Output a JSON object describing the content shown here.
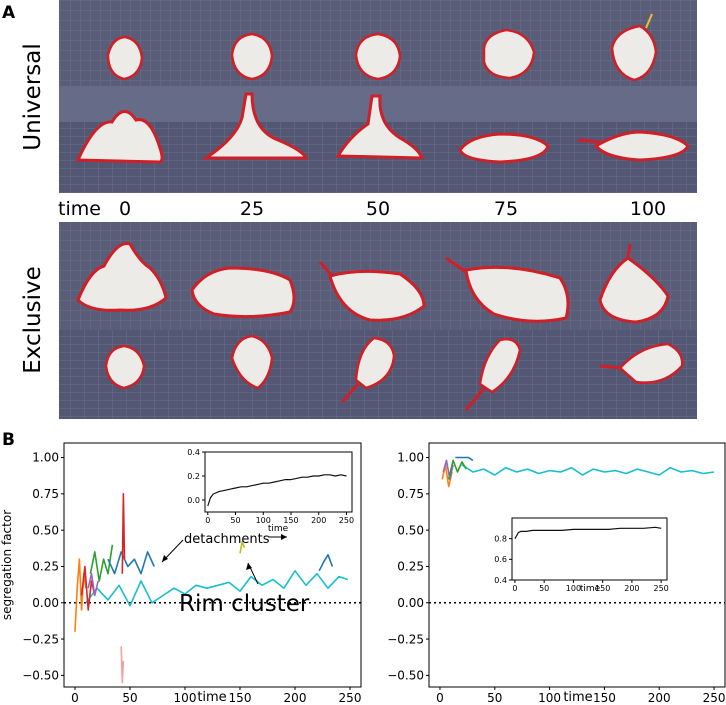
{
  "panel_a": {
    "label": "A",
    "universal_label": "Universal",
    "exclusive_label": "Exclusive",
    "time_label": "time",
    "times": [
      "0",
      "25",
      "50",
      "75",
      "100"
    ],
    "colors": {
      "floor": "#595d78",
      "grid": "#6c708d",
      "cell": "#ecebe8",
      "rim_red": "#d01f26",
      "rim_yellow": "#e8c12b"
    }
  },
  "panel_b": {
    "label": "B"
  },
  "chart_data": [
    {
      "type": "line",
      "title": "",
      "xlabel": "time",
      "ylabel": "segregation factor",
      "xlim": [
        -10,
        260
      ],
      "ylim": [
        -0.58,
        1.1
      ],
      "xticks": [
        0,
        50,
        100,
        150,
        200,
        250
      ],
      "yticks": [
        1.0,
        0.75,
        0.5,
        0.25,
        0.0,
        -0.25,
        -0.5
      ],
      "ytick_labels": [
        "1.00",
        "0.75",
        "0.50",
        "0.25",
        "0.00",
        "−0.25",
        "−0.50"
      ],
      "reference_line": {
        "y": 0.0,
        "style": "dotted"
      },
      "series": [
        {
          "name": "rim cluster",
          "color": "#17becf",
          "x": [
            10,
            20,
            30,
            40,
            50,
            60,
            70,
            80,
            90,
            100,
            110,
            120,
            130,
            140,
            150,
            160,
            170,
            180,
            190,
            200,
            210,
            220,
            230,
            240,
            248
          ],
          "y": [
            0.0,
            0.1,
            0.02,
            0.12,
            -0.02,
            0.15,
            0.0,
            0.05,
            0.1,
            0.06,
            0.12,
            0.1,
            0.12,
            0.14,
            0.08,
            0.18,
            0.12,
            0.16,
            0.1,
            0.22,
            0.12,
            0.2,
            0.1,
            0.18,
            0.16
          ]
        },
        {
          "name": "detachment-orange",
          "color": "#ff7f0e",
          "x": [
            0,
            2,
            4,
            6,
            8,
            10
          ],
          "y": [
            -0.2,
            0.1,
            0.3,
            -0.05,
            0.2,
            0.1
          ]
        },
        {
          "name": "detachment-red",
          "color": "#d62728",
          "x": [
            6,
            9,
            12,
            15,
            18
          ],
          "y": [
            0.05,
            0.25,
            -0.05,
            0.15,
            0.05
          ]
        },
        {
          "name": "detachment-purple",
          "color": "#9467bd",
          "x": [
            12,
            15,
            18,
            21
          ],
          "y": [
            0.1,
            0.2,
            0.05,
            0.15
          ]
        },
        {
          "name": "detachment-green",
          "color": "#2ca02c",
          "x": [
            14,
            18,
            22,
            26,
            30,
            34
          ],
          "y": [
            0.2,
            0.35,
            0.15,
            0.3,
            0.2,
            0.4
          ]
        },
        {
          "name": "detachment-blue",
          "color": "#1f77b4",
          "x": [
            30,
            36,
            42,
            48,
            54,
            60,
            66,
            72
          ],
          "y": [
            0.3,
            0.2,
            0.35,
            0.25,
            0.3,
            0.2,
            0.35,
            0.25
          ]
        },
        {
          "name": "detachment-spike-red",
          "color": "#d62728",
          "x": [
            43,
            44,
            45
          ],
          "y": [
            0.2,
            0.75,
            0.3
          ]
        },
        {
          "name": "detachment-spike-pink",
          "color": "#f4a0a0",
          "x": [
            42,
            43,
            44
          ],
          "y": [
            -0.3,
            -0.55,
            -0.4
          ]
        },
        {
          "name": "detachment-late-blue",
          "color": "#1f77b4",
          "x": [
            222,
            226,
            230,
            234
          ],
          "y": [
            0.22,
            0.28,
            0.33,
            0.25
          ]
        },
        {
          "name": "detachment-late-olive",
          "color": "#bcbd22",
          "x": [
            150,
            152,
            154
          ],
          "y": [
            0.34,
            0.42,
            0.38
          ]
        }
      ],
      "annotations": [
        {
          "text": "detachments",
          "points_to": [
            [
              150,
              0.38
            ],
            [
              85,
              0.28
            ]
          ]
        },
        {
          "text": "Rim cluster",
          "points_to": [
            [
              160,
              0.06
            ]
          ]
        }
      ],
      "inset": {
        "type": "line",
        "xlim": [
          -5,
          260
        ],
        "ylim": [
          -0.1,
          0.4
        ],
        "xticks": [
          0,
          50,
          100,
          150,
          200,
          250
        ],
        "yticks": [
          0.0,
          0.2,
          0.4
        ],
        "ytick_labels": [
          "0.0",
          "0.2",
          "0.4"
        ],
        "xlabel": "time",
        "series": [
          {
            "name": "average",
            "color": "#111111",
            "x": [
              0,
              5,
              10,
              20,
              30,
              40,
              50,
              60,
              70,
              80,
              90,
              100,
              110,
              120,
              130,
              140,
              150,
              160,
              170,
              180,
              190,
              200,
              210,
              220,
              230,
              240,
              250
            ],
            "y": [
              -0.05,
              0.02,
              0.05,
              0.07,
              0.08,
              0.09,
              0.1,
              0.11,
              0.11,
              0.12,
              0.13,
              0.14,
              0.14,
              0.15,
              0.16,
              0.17,
              0.17,
              0.18,
              0.19,
              0.19,
              0.2,
              0.2,
              0.21,
              0.21,
              0.2,
              0.21,
              0.2
            ]
          }
        ]
      }
    },
    {
      "type": "line",
      "title": "",
      "xlabel": "time",
      "ylabel": "",
      "xlim": [
        -10,
        260
      ],
      "ylim": [
        -0.58,
        1.1
      ],
      "xticks": [
        0,
        50,
        100,
        150,
        200,
        250
      ],
      "yticks": [
        1.0,
        0.75,
        0.5,
        0.25,
        0.0,
        -0.25,
        -0.5
      ],
      "ytick_labels": [
        "1.00",
        "0.75",
        "0.50",
        "0.25",
        "0.00",
        "−0.25",
        "−0.50"
      ],
      "reference_line": {
        "y": 0.0,
        "style": "dotted"
      },
      "series": [
        {
          "name": "rim cluster",
          "color": "#17becf",
          "x": [
            20,
            30,
            40,
            50,
            60,
            70,
            80,
            90,
            100,
            110,
            120,
            130,
            140,
            150,
            160,
            170,
            180,
            190,
            200,
            210,
            220,
            230,
            240,
            250
          ],
          "y": [
            0.95,
            0.9,
            0.92,
            0.88,
            0.93,
            0.9,
            0.92,
            0.89,
            0.91,
            0.9,
            0.93,
            0.88,
            0.92,
            0.9,
            0.91,
            0.89,
            0.92,
            0.9,
            0.88,
            0.93,
            0.9,
            0.91,
            0.89,
            0.9
          ]
        },
        {
          "name": "early-orange",
          "color": "#ff7f0e",
          "x": [
            2,
            5,
            8,
            11
          ],
          "y": [
            0.85,
            0.95,
            0.8,
            0.9
          ]
        },
        {
          "name": "early-purple",
          "color": "#9467bd",
          "x": [
            3,
            6,
            9,
            12
          ],
          "y": [
            0.9,
            0.98,
            0.85,
            0.95
          ]
        },
        {
          "name": "early-green",
          "color": "#2ca02c",
          "x": [
            8,
            12,
            16,
            20,
            24
          ],
          "y": [
            0.85,
            0.98,
            0.9,
            0.97,
            0.92
          ]
        },
        {
          "name": "early-blue",
          "color": "#1f77b4",
          "x": [
            14,
            20,
            26,
            30
          ],
          "y": [
            1.0,
            1.0,
            1.0,
            0.98
          ]
        }
      ],
      "inset": {
        "type": "line",
        "xlim": [
          -5,
          260
        ],
        "ylim": [
          0.4,
          1.0
        ],
        "xticks": [
          0,
          50,
          100,
          150,
          200,
          250
        ],
        "yticks": [
          0.4,
          0.6,
          0.8
        ],
        "ytick_labels": [
          "0.4",
          "0.6",
          "0.8"
        ],
        "xlabel": "time",
        "series": [
          {
            "name": "average",
            "color": "#111111",
            "x": [
              0,
              3,
              6,
              10,
              20,
              30,
              40,
              60,
              80,
              100,
              120,
              140,
              160,
              180,
              200,
              220,
              240,
              250
            ],
            "y": [
              0.8,
              0.83,
              0.86,
              0.87,
              0.87,
              0.88,
              0.88,
              0.88,
              0.88,
              0.89,
              0.89,
              0.89,
              0.89,
              0.9,
              0.9,
              0.9,
              0.91,
              0.9
            ]
          }
        ]
      }
    }
  ]
}
